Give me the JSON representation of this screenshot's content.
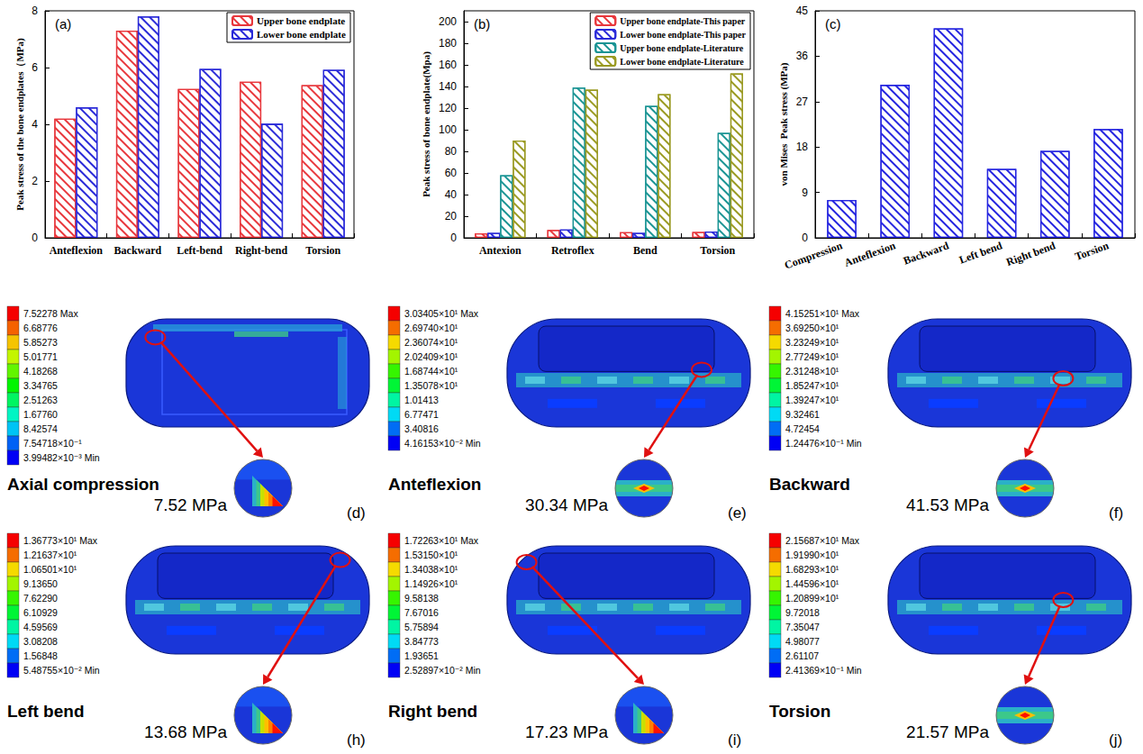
{
  "chart_data": [
    {
      "type": "bar",
      "title": "(a)",
      "ylabel": "Peak stress of the bone endplates（MPa)",
      "categories": [
        "Anteflexion",
        "Backward",
        "Left-bend",
        "Right-bend",
        "Torsion"
      ],
      "series": [
        {
          "name": "Upper bone endplate",
          "color": "#e8373c",
          "values": [
            4.2,
            7.3,
            5.25,
            5.5,
            5.38
          ]
        },
        {
          "name": "Lower bone endplate",
          "color": "#2a2ad8",
          "values": [
            4.6,
            7.8,
            5.95,
            4.02,
            5.92
          ]
        }
      ],
      "ylim": [
        0,
        8
      ],
      "yticks": [
        0,
        2,
        4,
        6,
        8
      ],
      "grid": false,
      "legend": "upper right"
    },
    {
      "type": "bar",
      "title": "(b)",
      "ylabel": "Peak stress of bone endplate(Mpa)",
      "categories": [
        "Antexion",
        "Retroflex",
        "Bend",
        "Torsion"
      ],
      "series": [
        {
          "name": "Upper bone endplate-This paper",
          "color": "#e8373c",
          "values": [
            4.2,
            7.3,
            5.3,
            5.4
          ]
        },
        {
          "name": "Lower bone endplate-This paper",
          "color": "#2a2ad8",
          "values": [
            4.6,
            7.8,
            4.6,
            5.9
          ]
        },
        {
          "name": "Upper bone endplate-Literature",
          "color": "#1a9494",
          "values": [
            58,
            139,
            122,
            97
          ]
        },
        {
          "name": "Lower bone endplate-Literature",
          "color": "#9a9a22",
          "values": [
            90,
            137,
            133,
            152
          ]
        }
      ],
      "ylim": [
        0,
        210
      ],
      "yticks": [
        0,
        20,
        40,
        60,
        80,
        100,
        120,
        140,
        160,
        180,
        200
      ],
      "grid": false,
      "legend": "upper right"
    },
    {
      "type": "bar",
      "title": "(c)",
      "ylabel": "von Mises  Peak stress (MPa)",
      "categories": [
        "Compression",
        "Anteflexion",
        "Backward",
        "Left bend",
        "Right bend",
        "Torsion"
      ],
      "values": [
        7.52,
        30.34,
        41.53,
        13.68,
        17.23,
        21.57
      ],
      "color": "#2525e0",
      "ylim": [
        0,
        45
      ],
      "yticks": [
        0,
        9,
        18,
        27,
        36,
        45
      ],
      "grid": false
    }
  ],
  "contour_panels": [
    {
      "letter": "(d)",
      "name": "Axial compression",
      "peak": "7.52 MPa",
      "colorbar": [
        "7.52278  Max",
        "6.68776",
        "5.85273",
        "5.01771",
        "4.18268",
        "3.34765",
        "2.51263",
        "1.67760",
        "8.42574",
        "7.54718×10⁻¹",
        "3.99482×10⁻³ Min"
      ]
    },
    {
      "letter": "(e)",
      "name": "Anteflexion",
      "peak": "30.34 MPa",
      "colorbar": [
        "3.03405×10¹ Max",
        "2.69740×10¹",
        "2.36074×10¹",
        "2.02409×10¹",
        "1.68744×10¹",
        "1.35078×10¹",
        "1.01413",
        "6.77471",
        "3.40816",
        "4.16153×10⁻² Min"
      ]
    },
    {
      "letter": "(f)",
      "name": "Backward",
      "peak": "41.53 MPa",
      "colorbar": [
        "4.15251×10¹ Max",
        "3.69250×10¹",
        "3.23249×10¹",
        "2.77249×10¹",
        "2.31248×10¹",
        "1.85247×10¹",
        "1.39247×10¹",
        "9.32461",
        "4.72454",
        "1.24476×10⁻¹ Min"
      ]
    },
    {
      "letter": "(h)",
      "name": "Left bend",
      "peak": "13.68 MPa",
      "colorbar": [
        "1.36773×10¹ Max",
        "1.21637×10¹",
        "1.06501×10¹",
        "9.13650",
        "7.62290",
        "6.10929",
        "4.59569",
        "3.08208",
        "1.56848",
        "5.48755×10⁻² Min"
      ]
    },
    {
      "letter": "(i)",
      "name": "Right bend",
      "peak": "17.23 MPa",
      "colorbar": [
        "1.72263×10¹ Max",
        "1.53150×10¹",
        "1.34038×10¹",
        "1.14926×10¹",
        "9.58138",
        "7.67016",
        "5.75894",
        "3.84773",
        "1.93651",
        "2.52897×10⁻² Min"
      ]
    },
    {
      "letter": "(j)",
      "name": "Torsion",
      "peak": "21.57 MPa",
      "colorbar": [
        "2.15687×10¹ Max",
        "1.91990×10¹",
        "1.68293×10¹",
        "1.44596×10¹",
        "1.20899×10¹",
        "9.72018",
        "7.35047",
        "4.98077",
        "2.61107",
        "2.41369×10⁻¹ Min"
      ]
    }
  ]
}
